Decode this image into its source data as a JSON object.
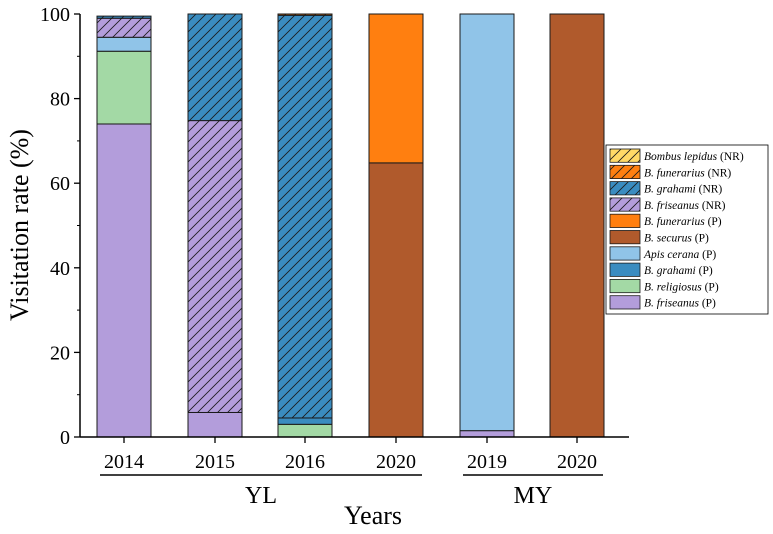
{
  "chart_data": {
    "type": "stacked-bar",
    "ylabel": "Visitation rate (%)",
    "xlabel": "Years",
    "ylim": [
      0,
      100
    ],
    "yticks": [
      0,
      20,
      40,
      60,
      80,
      100
    ],
    "categories": [
      "2014",
      "2015",
      "2016",
      "2020",
      "2019",
      "2020"
    ],
    "groups": [
      {
        "name": "YL",
        "categories": [
          0,
          1,
          2,
          3
        ]
      },
      {
        "name": "MY",
        "categories": [
          4,
          5
        ]
      }
    ],
    "legend_position": "right",
    "series": [
      {
        "name": "B. friseanus",
        "italic": "B. friseanus",
        "suffix": " (P)",
        "color": "#b39ddb",
        "hatch": false,
        "values": [
          74.0,
          5.8,
          0,
          0,
          1.5,
          0
        ]
      },
      {
        "name": "B. religiosus",
        "italic": "B. religiosus",
        "suffix": " (P)",
        "color": "#a3d9a5",
        "hatch": false,
        "values": [
          17.2,
          0,
          3.0,
          0,
          0,
          0
        ]
      },
      {
        "name": "B. grahami",
        "italic": "B. grahami",
        "suffix": " (P)",
        "color": "#3a8cc0",
        "hatch": false,
        "values": [
          0,
          0,
          1.5,
          0,
          0,
          0
        ]
      },
      {
        "name": "Apis cerana",
        "italic": "Apis cerana",
        "suffix": " (P)",
        "color": "#90c4e8",
        "hatch": false,
        "values": [
          3.3,
          0,
          0,
          0,
          98.5,
          0
        ]
      },
      {
        "name": "B. securus",
        "italic": "B. securus",
        "suffix": " (P)",
        "color": "#b05a2c",
        "hatch": false,
        "values": [
          0,
          0,
          0,
          64.8,
          0,
          100
        ]
      },
      {
        "name": "B. funerarius",
        "italic": "B. funerarius",
        "suffix": " (P)",
        "color": "#ff7f10",
        "hatch": false,
        "values": [
          0,
          0,
          0,
          35.2,
          0,
          0
        ]
      },
      {
        "name": "B. friseanus",
        "italic": "B. friseanus",
        "suffix": " (NR)",
        "color": "#b39ddb",
        "hatch": true,
        "values": [
          4.5,
          69.0,
          0,
          0,
          0,
          0
        ]
      },
      {
        "name": "B. grahami",
        "italic": "B. grahami",
        "suffix": " (NR)",
        "color": "#3a8cc0",
        "hatch": true,
        "values": [
          0.5,
          25.2,
          95.2,
          0,
          0,
          0
        ]
      },
      {
        "name": "B. funerarius",
        "italic": "B. funerarius",
        "suffix": " (NR)",
        "color": "#ff7f10",
        "hatch": true,
        "values": [
          0,
          0,
          0.3,
          0,
          0,
          0
        ]
      },
      {
        "name": "Bombus lepidus",
        "italic": "Bombus lepidus",
        "suffix": " (NR)",
        "color": "#ffd966",
        "hatch": true,
        "values": [
          0,
          0,
          0,
          0,
          0,
          0
        ]
      }
    ],
    "legend_order": [
      9,
      8,
      7,
      6,
      5,
      4,
      3,
      2,
      1,
      0
    ]
  }
}
